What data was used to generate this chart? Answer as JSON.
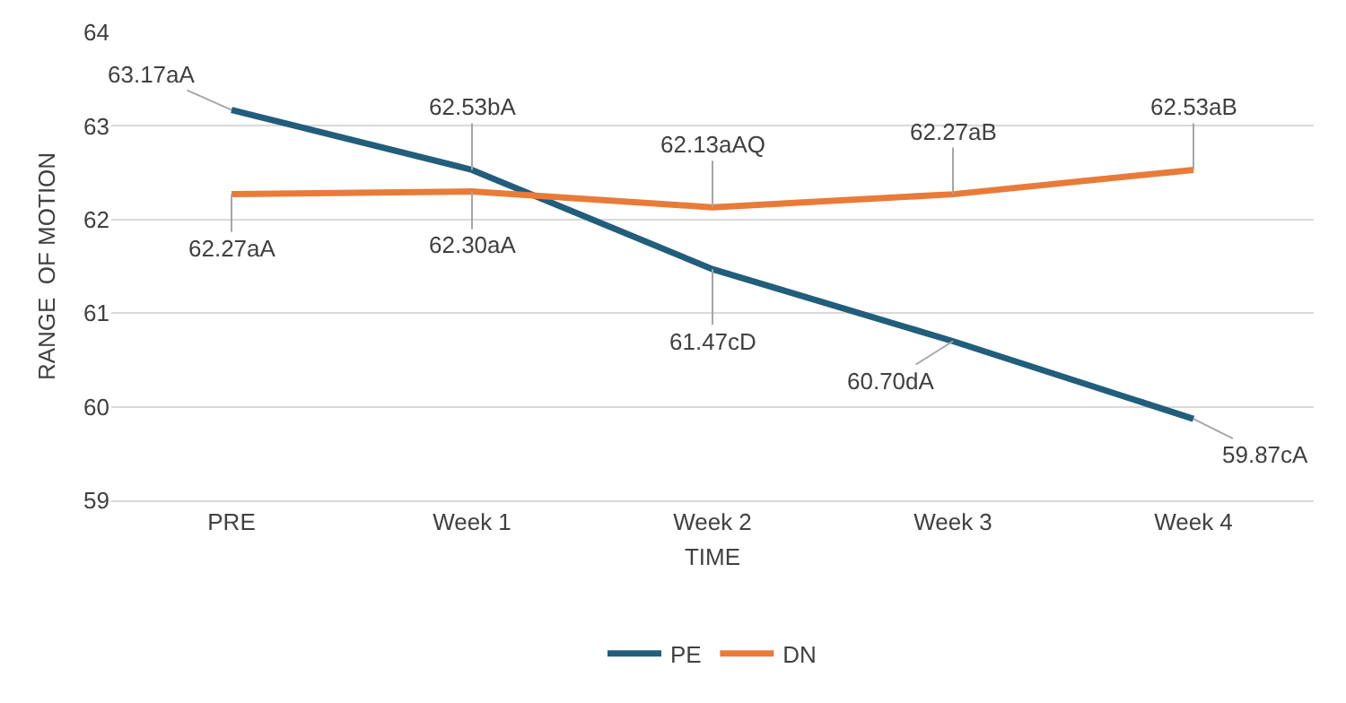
{
  "chart_data": {
    "type": "line",
    "xlabel": "TIME",
    "ylabel": "RANGE  OF MOTION",
    "categories": [
      "PRE",
      "Week 1",
      "Week 2",
      "Week 3",
      "Week 4"
    ],
    "series": [
      {
        "name": "PE",
        "color": "#215e7c",
        "values": [
          63.17,
          62.53,
          61.47,
          60.7,
          59.87
        ],
        "value_labels": [
          "63.17aA",
          "62.53bA",
          "61.47cD",
          "60.70dA",
          "59.87cA"
        ]
      },
      {
        "name": "DN",
        "color": "#e97b39",
        "values": [
          62.27,
          62.3,
          62.13,
          62.27,
          62.53
        ],
        "value_labels": [
          "62.27aA",
          "62.30aA",
          "62.13aAQ",
          "62.27aB",
          "62.53aB"
        ]
      }
    ],
    "ylim": [
      59,
      64
    ],
    "yticks": [
      59,
      60,
      61,
      62,
      63,
      64
    ],
    "grid": "y",
    "legend": "bottom",
    "marker": "none",
    "line_style": "solid"
  }
}
